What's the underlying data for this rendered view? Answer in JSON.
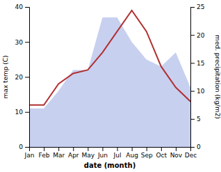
{
  "chart_data": {
    "type": "line",
    "xlabel": "date (month)",
    "ylabel": "max temp (C)",
    "y2label": "med. precipitation (kg/m2)",
    "x": [
      1,
      2,
      3,
      4,
      5,
      6,
      7,
      8,
      9,
      10,
      11,
      12
    ],
    "xlim": [
      1,
      12
    ],
    "xticks": [
      {
        "value": 1,
        "label": "Jan"
      },
      {
        "value": 2,
        "label": "Feb"
      },
      {
        "value": 3,
        "label": "Mar"
      },
      {
        "value": 4,
        "label": "Apr"
      },
      {
        "value": 5,
        "label": "May"
      },
      {
        "value": 6,
        "label": "Jun"
      },
      {
        "value": 7,
        "label": "Jul"
      },
      {
        "value": 8,
        "label": "Aug"
      },
      {
        "value": 9,
        "label": "Sep"
      },
      {
        "value": 10,
        "label": "Oct"
      },
      {
        "value": 11,
        "label": "Nov"
      },
      {
        "value": 12,
        "label": "Dec"
      }
    ],
    "ylim": [
      0,
      40
    ],
    "yticks": [
      0,
      10,
      20,
      30,
      40
    ],
    "y2lim": [
      0,
      25
    ],
    "y2ticks": [
      0,
      5,
      10,
      15,
      20,
      25
    ],
    "grid": false,
    "series": [
      {
        "type": "area",
        "color": "#c8d0f0",
        "values": [
          11,
          11,
          16,
          22,
          22,
          37,
          37,
          30,
          25,
          23,
          27,
          17
        ]
      },
      {
        "type": "line",
        "color": "#b03030",
        "values": [
          12,
          12,
          18,
          21,
          22,
          27,
          33,
          39,
          33,
          23,
          17,
          13
        ]
      }
    ]
  }
}
